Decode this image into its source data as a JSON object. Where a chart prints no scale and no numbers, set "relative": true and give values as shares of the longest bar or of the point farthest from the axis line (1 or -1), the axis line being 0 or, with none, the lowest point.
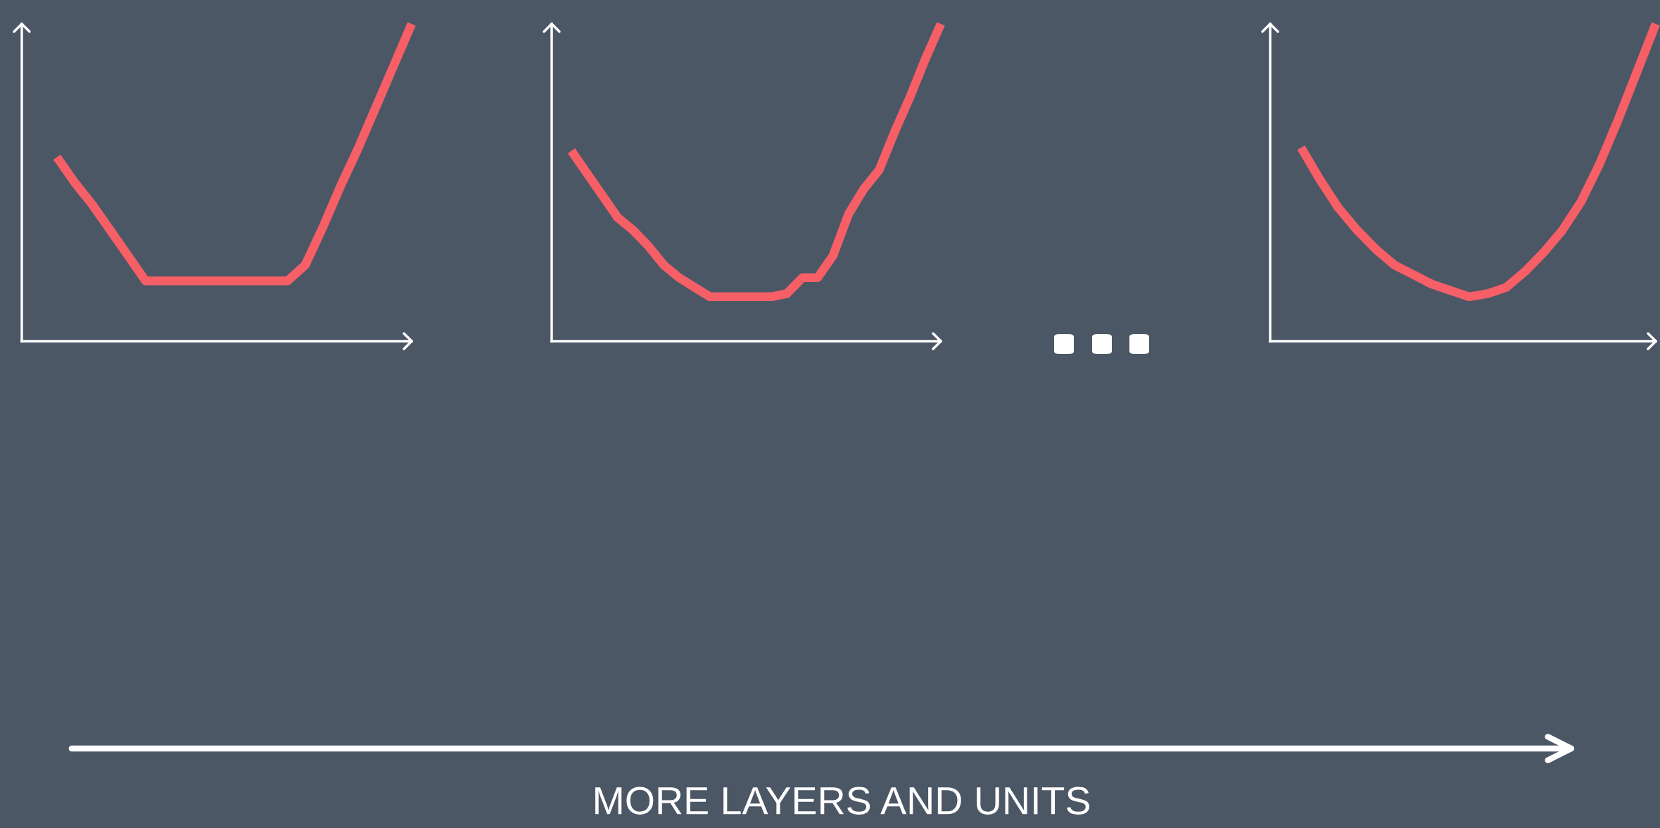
{
  "chart_data": [
    {
      "type": "line",
      "relative": true,
      "annotations": [
        "MORE LAYERS AND UNITS"
      ],
      "categories": [
        null,
        null,
        null,
        null,
        null,
        null,
        null,
        null,
        null,
        null,
        null,
        null,
        null,
        null,
        null,
        null,
        null,
        null,
        null,
        null,
        null
      ],
      "series": [
        {
          "color": "#f65f66",
          "values": [
            0.58,
            0.5,
            0.43,
            0.35,
            0.27,
            0.19,
            0.19,
            0.19,
            0.19,
            0.19,
            0.19,
            0.19,
            0.19,
            0.19,
            0.24,
            0.36,
            0.49,
            0.61,
            0.74,
            0.87,
            1.0
          ]
        }
      ]
    },
    {
      "type": "line",
      "relative": true,
      "categories": [
        null,
        null,
        null,
        null,
        null,
        null,
        null,
        null,
        null,
        null,
        null,
        null,
        null,
        null,
        null,
        null,
        null,
        null,
        null,
        null,
        null,
        null,
        null,
        null,
        null
      ],
      "series": [
        {
          "color": "#f65f66",
          "values": [
            0.6,
            0.53,
            0.46,
            0.39,
            0.35,
            0.3,
            0.24,
            0.2,
            0.17,
            0.14,
            0.14,
            0.14,
            0.14,
            0.14,
            0.15,
            0.2,
            0.2,
            0.27,
            0.4,
            0.48,
            0.54,
            0.66,
            0.77,
            0.89,
            1.0
          ]
        }
      ]
    },
    {
      "type": "line",
      "relative": true,
      "categories": [
        null,
        null,
        null,
        null,
        null,
        null,
        null,
        null,
        null,
        null,
        null,
        null,
        null,
        null,
        null,
        null,
        null,
        null,
        null,
        null
      ],
      "series": [
        {
          "color": "#f65f66",
          "values": [
            0.61,
            0.51,
            0.42,
            0.35,
            0.29,
            0.24,
            0.21,
            0.18,
            0.16,
            0.14,
            0.15,
            0.17,
            0.22,
            0.28,
            0.35,
            0.44,
            0.56,
            0.7,
            0.85,
            1.0
          ]
        }
      ]
    }
  ]
}
